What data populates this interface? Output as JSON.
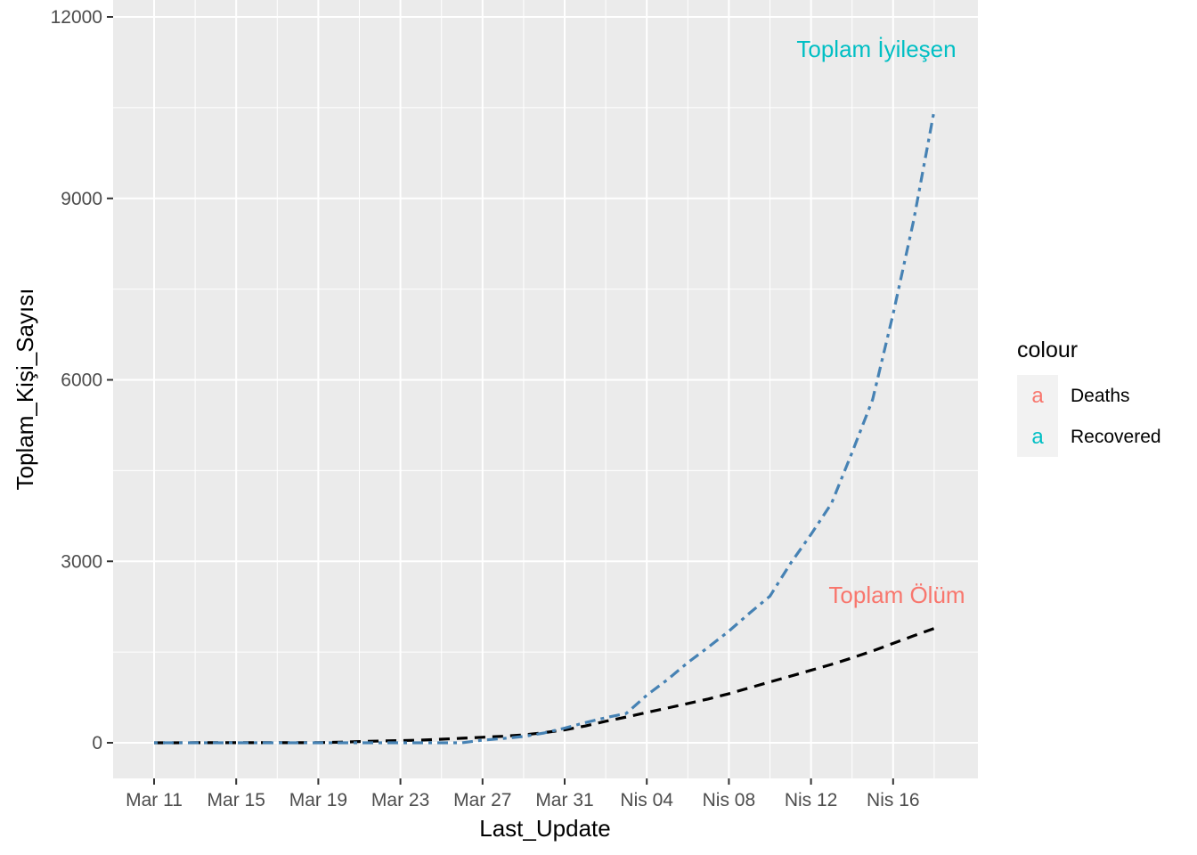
{
  "chart_data": {
    "type": "line",
    "title": "",
    "xlabel": "Last_Update",
    "ylabel": "Toplam_Kişi_Sayısı",
    "x_ticks": [
      "Mar 11",
      "Mar 15",
      "Mar 19",
      "Mar 23",
      "Mar 27",
      "Mar 31",
      "Nis 04",
      "Nis 08",
      "Nis 12",
      "Nis 16"
    ],
    "y_ticks": [
      "0",
      "3000",
      "6000",
      "9000",
      "12000"
    ],
    "x_range": [
      "2020-03-11",
      "2020-04-18"
    ],
    "ylim": [
      0,
      12000
    ],
    "grid": true,
    "background": "#ebebeb",
    "legend": {
      "title": "colour",
      "position": "right",
      "entries": [
        {
          "glyph": "a",
          "label": "Deaths",
          "color": "#f8766d"
        },
        {
          "glyph": "a",
          "label": "Recovered",
          "color": "#00bfc4"
        }
      ]
    },
    "annotations": [
      {
        "text": "Toplam İyileşen",
        "color": "#00bfc4",
        "x": "2020-04-15",
        "y": 11420
      },
      {
        "text": "Toplam Ölüm",
        "color": "#f8766d",
        "x": "2020-04-15",
        "y": 2430
      }
    ],
    "series": [
      {
        "line_color": "#000000",
        "dash": "dashed",
        "x": [
          "2020-03-11",
          "2020-03-12",
          "2020-03-13",
          "2020-03-14",
          "2020-03-15",
          "2020-03-16",
          "2020-03-17",
          "2020-03-18",
          "2020-03-19",
          "2020-03-20",
          "2020-03-21",
          "2020-03-22",
          "2020-03-23",
          "2020-03-24",
          "2020-03-25",
          "2020-03-26",
          "2020-03-27",
          "2020-03-28",
          "2020-03-29",
          "2020-03-30",
          "2020-03-31",
          "2020-04-01",
          "2020-04-02",
          "2020-04-03",
          "2020-04-04",
          "2020-04-05",
          "2020-04-06",
          "2020-04-07",
          "2020-04-08",
          "2020-04-09",
          "2020-04-10",
          "2020-04-11",
          "2020-04-12",
          "2020-04-13",
          "2020-04-14",
          "2020-04-15",
          "2020-04-16",
          "2020-04-17",
          "2020-04-18"
        ],
        "values": [
          0,
          0,
          1,
          1,
          1,
          1,
          1,
          2,
          3,
          9,
          21,
          30,
          37,
          44,
          59,
          75,
          92,
          108,
          131,
          168,
          214,
          277,
          356,
          425,
          501,
          574,
          649,
          725,
          812,
          908,
          1006,
          1101,
          1198,
          1296,
          1403,
          1518,
          1643,
          1769,
          1890
        ]
      },
      {
        "line_color": "#4682b4",
        "dash": "dotdash",
        "x": [
          "2020-03-11",
          "2020-03-12",
          "2020-03-13",
          "2020-03-14",
          "2020-03-15",
          "2020-03-16",
          "2020-03-17",
          "2020-03-18",
          "2020-03-19",
          "2020-03-20",
          "2020-03-21",
          "2020-03-22",
          "2020-03-23",
          "2020-03-24",
          "2020-03-25",
          "2020-03-26",
          "2020-03-27",
          "2020-03-28",
          "2020-03-29",
          "2020-03-30",
          "2020-03-31",
          "2020-04-01",
          "2020-04-02",
          "2020-04-03",
          "2020-04-04",
          "2020-04-05",
          "2020-04-06",
          "2020-04-07",
          "2020-04-08",
          "2020-04-09",
          "2020-04-10",
          "2020-04-11",
          "2020-04-12",
          "2020-04-13",
          "2020-04-14",
          "2020-04-15",
          "2020-04-16",
          "2020-04-17",
          "2020-04-18"
        ],
        "values": [
          0,
          0,
          0,
          0,
          0,
          0,
          0,
          0,
          0,
          0,
          0,
          0,
          0,
          0,
          0,
          0,
          42,
          70,
          105,
          162,
          243,
          333,
          415,
          484,
          786,
          1042,
          1326,
          1582,
          1846,
          2142,
          2423,
          2965,
          3445,
          3957,
          4799,
          5674,
          7089,
          8631,
          10453
        ]
      }
    ]
  }
}
